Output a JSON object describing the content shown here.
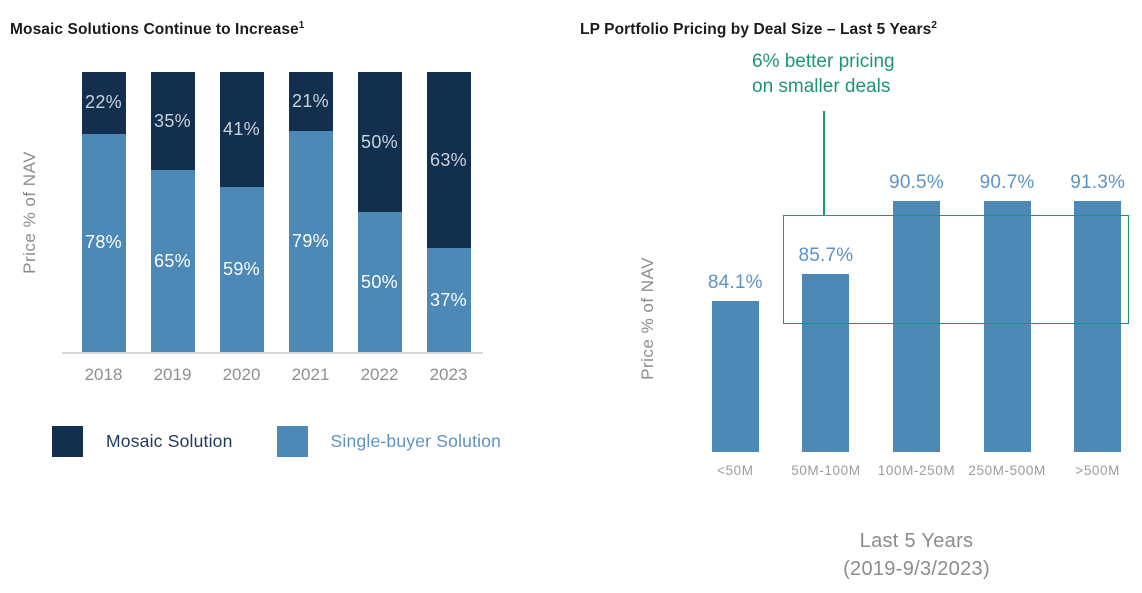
{
  "figure": {
    "background": "#FFFFFF"
  },
  "colors": {
    "navy": "#132F4E",
    "steel_blue": "#4D89B6",
    "teal_accent": "#1D9578",
    "value_label_blue": "#5C94C6",
    "axis_text_gray": "#8F8F8F",
    "tick_text_gray": "#9C9C9C",
    "title_text": "#1B1B1B",
    "axis_line_gray": "#D8D8D8"
  },
  "chart_data": [
    {
      "type": "bar",
      "variant": "stacked-100",
      "title": "Mosaic Solutions Continue to Increase",
      "title_footnote": "1",
      "ylabel": "Price % of NAV",
      "categories": [
        "2018",
        "2019",
        "2020",
        "2021",
        "2022",
        "2023"
      ],
      "series": [
        {
          "name": "Mosaic Solution",
          "color": "#132F4E",
          "values": [
            22,
            35,
            41,
            21,
            50,
            63
          ]
        },
        {
          "name": "Single-buyer Solution",
          "color": "#4D89B6",
          "values": [
            78,
            65,
            59,
            79,
            50,
            37
          ]
        }
      ],
      "value_suffix": "%",
      "ylim": [
        0,
        100
      ],
      "grid": false,
      "legend_position": "bottom-left"
    },
    {
      "type": "bar",
      "variant": "single-series",
      "title": "LP Portfolio Pricing by Deal Size – Last 5 Years",
      "title_footnote": "2",
      "ylabel": "Price % of NAV",
      "categories": [
        "<50M",
        "50M-100M",
        "100M-250M",
        "250M-500M",
        ">500M"
      ],
      "values": [
        84.1,
        85.7,
        90.5,
        90.7,
        91.3
      ],
      "data_labels": [
        "84.1%",
        "85.7%",
        "90.5%",
        "90.7%",
        "91.3%"
      ],
      "bar_color": "#4D89B6",
      "xlabel_lines": [
        "Last 5 Years",
        "(2019-9/3/2023)"
      ],
      "ylim": [
        75,
        95
      ],
      "grid": false,
      "annotation": {
        "text_lines": [
          "6% better pricing",
          "on smaller deals"
        ],
        "color": "#1D9578",
        "box_spans_categories": [
          "50M-100M",
          ">500M"
        ]
      }
    }
  ]
}
